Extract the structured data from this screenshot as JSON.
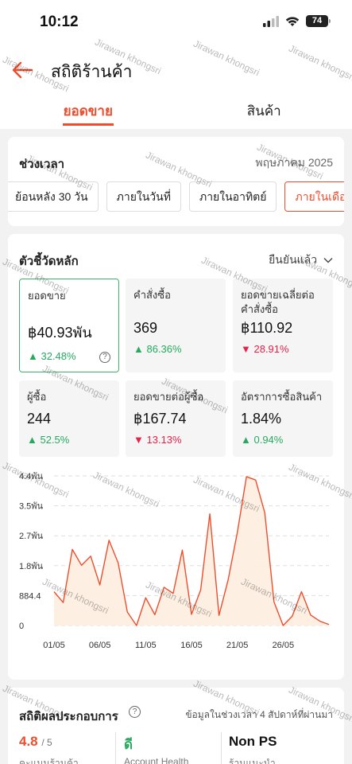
{
  "status": {
    "time": "10:12",
    "battery": "74"
  },
  "header": {
    "title": "สถิติร้านค้า"
  },
  "tabs": [
    {
      "label": "ยอดขาย",
      "active": true
    },
    {
      "label": "สินค้า",
      "active": false
    }
  ],
  "period": {
    "title": "ช่วงเวลา",
    "date": "พฤษภาคม 2025",
    "options": [
      {
        "label": "ย้อนหลัง 30 วัน",
        "active": false
      },
      {
        "label": "ภายในวันที่",
        "active": false
      },
      {
        "label": "ภายในอาทิตย์",
        "active": false
      },
      {
        "label": "ภายในเดือน",
        "active": true
      }
    ]
  },
  "metrics": {
    "title": "ตัวชี้วัดหลัก",
    "confirm_label": "ยืนยันแล้ว",
    "items": [
      {
        "label": "ยอดขาย",
        "value": "฿40.93พัน",
        "change": "32.48%",
        "direction": "up"
      },
      {
        "label": "คำสั่งซื้อ",
        "value": "369",
        "change": "86.36%",
        "direction": "up"
      },
      {
        "label": "ยอดขายเฉลี่ยต่อคำสั่งซื้อ",
        "value": "฿110.92",
        "change": "28.91%",
        "direction": "down"
      },
      {
        "label": "ผู้ซื้อ",
        "value": "244",
        "change": "52.5%",
        "direction": "up"
      },
      {
        "label": "ยอดขายต่อผู้ซื้อ",
        "value": "฿167.74",
        "change": "13.13%",
        "direction": "down"
      },
      {
        "label": "อัตราการซื้อสินค้า",
        "value": "1.84%",
        "change": "0.94%",
        "direction": "up"
      }
    ]
  },
  "chart_data": {
    "type": "area",
    "y_ticks": [
      "0",
      "884.4",
      "1.8พัน",
      "2.7พัน",
      "3.5พัน",
      "4.4พัน"
    ],
    "x_ticks": [
      "01/05",
      "06/05",
      "11/05",
      "16/05",
      "21/05",
      "26/05"
    ],
    "x": [
      1,
      2,
      3,
      4,
      5,
      6,
      7,
      8,
      9,
      10,
      11,
      12,
      13,
      14,
      15,
      16,
      17,
      18,
      19,
      20,
      21,
      22,
      23,
      24,
      25,
      26,
      27,
      28,
      29,
      30,
      31
    ],
    "values": [
      1000,
      680,
      2250,
      1780,
      2050,
      1200,
      2520,
      1850,
      400,
      0,
      820,
      320,
      1130,
      950,
      2230,
      330,
      1050,
      3300,
      300,
      1350,
      2750,
      4400,
      4300,
      3330,
      700,
      0,
      280,
      1000,
      310,
      130,
      30
    ],
    "ylim": [
      0,
      4422
    ],
    "color": "#ee4d2d",
    "fill": "#fdeee0"
  },
  "performance": {
    "title": "สถิติผลประกอบการ",
    "note": "ข้อมูลในช่วงเวลา 4 สัปดาห์ที่ผ่านมา",
    "score": "4.8",
    "score_max": "/ 5",
    "health": "ดี",
    "ps": "Non PS",
    "score_label": "คะแนนร้านค้า",
    "health_label": "Account Health",
    "ps_label": "ร้านแนะนำ"
  },
  "watermark": "Jirawan khongsri"
}
